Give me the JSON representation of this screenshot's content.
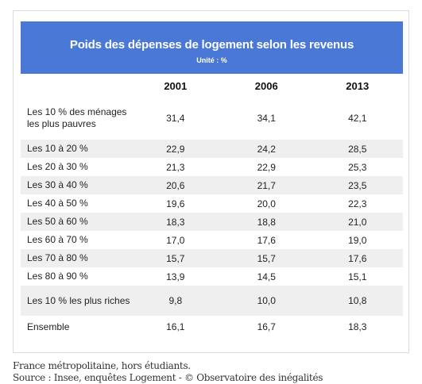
{
  "table": {
    "title": "Poids des dépenses de logement selon les revenus",
    "unit": "Unité : %",
    "columns": [
      "",
      "2001",
      "2006",
      "2013"
    ],
    "rows": [
      {
        "label": "Les 10 % des ménages les plus pauvres",
        "values": [
          "31,4",
          "34,1",
          "42,1"
        ]
      },
      {
        "label": "Les 10 à 20 %",
        "values": [
          "22,9",
          "24,2",
          "28,5"
        ]
      },
      {
        "label": "Les 20 à 30 %",
        "values": [
          "21,3",
          "22,9",
          "25,3"
        ]
      },
      {
        "label": "Les 30 à 40 %",
        "values": [
          "20,6",
          "21,7",
          "23,5"
        ]
      },
      {
        "label": "Les 40 à 50 %",
        "values": [
          "19,6",
          "20,0",
          "22,3"
        ]
      },
      {
        "label": "Les 50 à 60 %",
        "values": [
          "18,3",
          "18,8",
          "21,0"
        ]
      },
      {
        "label": "Les 60 à 70 %",
        "values": [
          "17,0",
          "17,6",
          "19,0"
        ]
      },
      {
        "label": "Les 70 à 80 %",
        "values": [
          "15,7",
          "15,7",
          "17,6"
        ]
      },
      {
        "label": "Les 80 à 90 %",
        "values": [
          "13,9",
          "14,5",
          "15,1"
        ]
      },
      {
        "label": "Les 10 % les plus riches",
        "values": [
          "9,8",
          "10,0",
          "10,8"
        ]
      },
      {
        "label": "Ensemble",
        "values": [
          "16,1",
          "16,7",
          "18,3"
        ]
      }
    ]
  },
  "footnotes": {
    "scope": "France métropolitaine, hors étudiants.",
    "source": "Source : Insee, enquêtes Logement - © Observatoire des inégalités"
  },
  "colors": {
    "banner": "#4a78d6",
    "row_alt": "#efefef"
  }
}
